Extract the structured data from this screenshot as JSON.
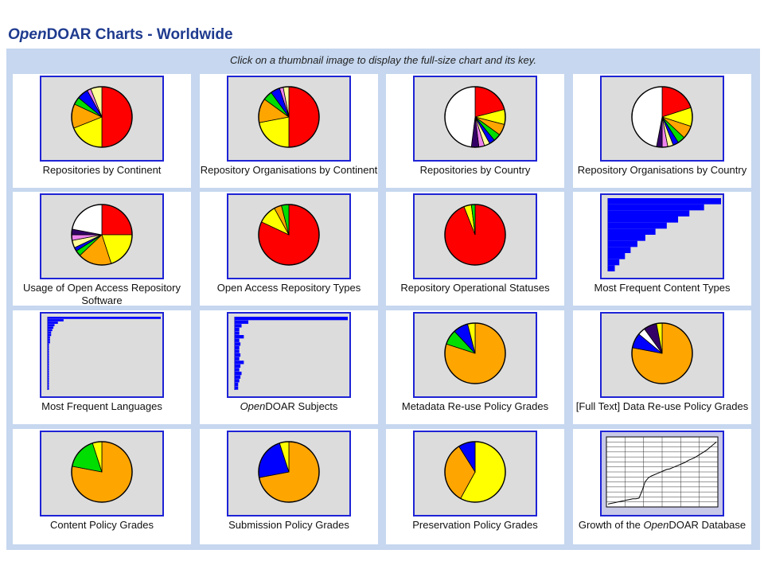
{
  "page": {
    "title_ital": "Open",
    "title_rest": "DOAR Charts - Worldwide",
    "instruction": "Click on a thumbnail image to display the full-size chart and its key."
  },
  "colors": {
    "red": "#ff0000",
    "yellow": "#ffff00",
    "orange": "#ffa500",
    "green": "#00dd00",
    "blue": "#0000ff",
    "navy": "#0000aa",
    "white": "#ffffff",
    "purple": "#330066",
    "pink": "#ee82ee",
    "lightyellow": "#ffff99",
    "border": "#1e23d6",
    "thumb_bg": "#dcdcdc"
  },
  "thumbnails": [
    {
      "caption": "Repositories by Continent",
      "chart": {
        "type": "pie",
        "slices": [
          {
            "value": 50,
            "color": "#ff0000"
          },
          {
            "value": 19,
            "color": "#ffff00"
          },
          {
            "value": 13,
            "color": "#ffa500"
          },
          {
            "value": 4,
            "color": "#00dd00"
          },
          {
            "value": 6,
            "color": "#0000ff"
          },
          {
            "value": 2,
            "color": "#ee82ee"
          },
          {
            "value": 6,
            "color": "#ffff99"
          }
        ]
      }
    },
    {
      "caption": "Repository Organisations by Continent",
      "chart": {
        "type": "pie",
        "slices": [
          {
            "value": 50,
            "color": "#ff0000"
          },
          {
            "value": 22,
            "color": "#ffff00"
          },
          {
            "value": 13,
            "color": "#ffa500"
          },
          {
            "value": 5,
            "color": "#00dd00"
          },
          {
            "value": 5,
            "color": "#0000ff"
          },
          {
            "value": 2,
            "color": "#ee82ee"
          },
          {
            "value": 3,
            "color": "#ffff99"
          }
        ]
      }
    },
    {
      "caption": "Repositories by Country",
      "chart": {
        "type": "pie",
        "slices": [
          {
            "value": 21,
            "color": "#ff0000"
          },
          {
            "value": 8,
            "color": "#ffff00"
          },
          {
            "value": 6,
            "color": "#ffa500"
          },
          {
            "value": 4,
            "color": "#00dd00"
          },
          {
            "value": 3,
            "color": "#0000ff"
          },
          {
            "value": 3,
            "color": "#ffff99"
          },
          {
            "value": 3,
            "color": "#ee82ee"
          },
          {
            "value": 4,
            "color": "#330066"
          },
          {
            "value": 48,
            "color": "#ffffff"
          }
        ]
      }
    },
    {
      "caption": "Repository Organisations by Country",
      "chart": {
        "type": "pie",
        "slices": [
          {
            "value": 20,
            "color": "#ff0000"
          },
          {
            "value": 10,
            "color": "#ffff00"
          },
          {
            "value": 7,
            "color": "#ffa500"
          },
          {
            "value": 4,
            "color": "#00dd00"
          },
          {
            "value": 3,
            "color": "#0000ff"
          },
          {
            "value": 3,
            "color": "#ffff99"
          },
          {
            "value": 3,
            "color": "#ee82ee"
          },
          {
            "value": 3,
            "color": "#330066"
          },
          {
            "value": 47,
            "color": "#ffffff"
          }
        ]
      }
    },
    {
      "caption": "Usage of Open Access Repository Software",
      "chart": {
        "type": "pie",
        "slices": [
          {
            "value": 25,
            "color": "#ff0000"
          },
          {
            "value": 20,
            "color": "#ffff00"
          },
          {
            "value": 18,
            "color": "#ffa500"
          },
          {
            "value": 3,
            "color": "#00dd00"
          },
          {
            "value": 2,
            "color": "#0000ff"
          },
          {
            "value": 4,
            "color": "#ffff99"
          },
          {
            "value": 3,
            "color": "#ee82ee"
          },
          {
            "value": 3,
            "color": "#330066"
          },
          {
            "value": 22,
            "color": "#ffffff"
          }
        ]
      }
    },
    {
      "caption": "Open Access Repository Types",
      "chart": {
        "type": "pie",
        "slices": [
          {
            "value": 82,
            "color": "#ff0000"
          },
          {
            "value": 10,
            "color": "#ffff00"
          },
          {
            "value": 4,
            "color": "#ffa500"
          },
          {
            "value": 4,
            "color": "#00dd00"
          }
        ]
      }
    },
    {
      "caption": "Repository Operational Statuses",
      "chart": {
        "type": "pie",
        "slices": [
          {
            "value": 94,
            "color": "#ff0000"
          },
          {
            "value": 4,
            "color": "#ffff00"
          },
          {
            "value": 2,
            "color": "#00dd00"
          }
        ]
      }
    },
    {
      "caption": "Most Frequent Content Types",
      "chart": {
        "type": "hbar",
        "align": "left",
        "values": [
          100,
          85,
          72,
          62,
          52,
          42,
          33,
          26,
          20,
          15,
          10,
          6
        ]
      }
    },
    {
      "caption": "Most Frequent Languages",
      "chart": {
        "type": "hbar",
        "align": "left",
        "values": [
          100,
          14,
          9,
          6,
          5,
          4,
          3,
          3,
          2,
          2,
          2,
          1,
          1,
          1,
          1,
          1,
          1,
          1,
          1,
          1,
          1,
          1,
          1,
          1,
          1,
          1,
          1,
          1,
          1,
          1
        ]
      }
    },
    {
      "caption_ital": "Open",
      "caption": "DOAR Subjects",
      "chart": {
        "type": "hbar",
        "align": "left",
        "values": [
          100,
          12,
          6,
          4,
          4,
          8,
          4,
          5,
          4,
          4,
          5,
          4,
          8,
          5,
          4,
          6,
          5,
          4,
          3,
          3
        ]
      }
    },
    {
      "caption": "Metadata Re-use Policy Grades",
      "chart": {
        "type": "pie",
        "slices": [
          {
            "value": 80,
            "color": "#ffa500"
          },
          {
            "value": 8,
            "color": "#00dd00"
          },
          {
            "value": 8,
            "color": "#0000ff"
          },
          {
            "value": 4,
            "color": "#ffff00"
          }
        ]
      }
    },
    {
      "caption": "[Full Text] Data Re-use Policy Grades",
      "chart": {
        "type": "pie",
        "slices": [
          {
            "value": 78,
            "color": "#ffa500"
          },
          {
            "value": 8,
            "color": "#0000ff"
          },
          {
            "value": 4,
            "color": "#ffffff"
          },
          {
            "value": 7,
            "color": "#330066"
          },
          {
            "value": 3,
            "color": "#ffff00"
          }
        ]
      }
    },
    {
      "caption": "Content Policy Grades",
      "chart": {
        "type": "pie",
        "slices": [
          {
            "value": 78,
            "color": "#ffa500"
          },
          {
            "value": 17,
            "color": "#00dd00"
          },
          {
            "value": 5,
            "color": "#ffff00"
          }
        ]
      }
    },
    {
      "caption": "Submission Policy Grades",
      "chart": {
        "type": "pie",
        "slices": [
          {
            "value": 72,
            "color": "#ffa500"
          },
          {
            "value": 23,
            "color": "#0000ff"
          },
          {
            "value": 5,
            "color": "#ffff00"
          }
        ]
      }
    },
    {
      "caption": "Preservation Policy Grades",
      "chart": {
        "type": "pie",
        "slices": [
          {
            "value": 58,
            "color": "#ffff00"
          },
          {
            "value": 33,
            "color": "#ffa500"
          },
          {
            "value": 9,
            "color": "#0000ff"
          }
        ]
      }
    },
    {
      "caption": "Growth of the ",
      "caption_ital": "Open",
      "caption_rest": "DOAR Database",
      "chart": {
        "type": "line",
        "y": [
          2,
          3,
          4,
          5,
          6,
          7,
          8,
          9,
          10,
          10,
          11,
          22,
          36,
          42,
          45,
          47,
          49,
          51,
          53,
          55,
          56,
          58,
          60,
          62,
          64,
          66,
          69,
          71,
          73,
          76,
          79,
          82,
          85,
          89,
          93,
          97
        ]
      }
    }
  ]
}
